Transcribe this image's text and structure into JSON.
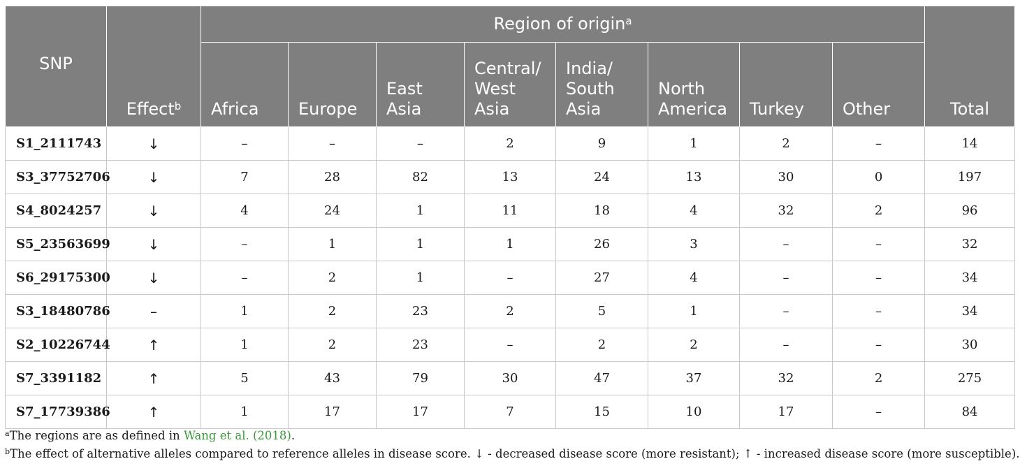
{
  "header": {
    "snp": "SNP",
    "effect": "Effect",
    "effect_sup": "b",
    "region_group": "Region of origin",
    "region_sup": "a",
    "regions": [
      "Africa",
      "Europe",
      "East Asia",
      "Central/ West Asia",
      "India/ South Asia",
      "North America",
      "Turkey",
      "Other"
    ],
    "total": "Total"
  },
  "rows": [
    {
      "snp": "S1_2111743",
      "effect": "↓",
      "values": [
        "–",
        "–",
        "–",
        "2",
        "9",
        "1",
        "2",
        "–"
      ],
      "total": "14"
    },
    {
      "snp": "S3_37752706",
      "effect": "↓",
      "values": [
        "7",
        "28",
        "82",
        "13",
        "24",
        "13",
        "30",
        "0"
      ],
      "total": "197"
    },
    {
      "snp": "S4_8024257",
      "effect": "↓",
      "values": [
        "4",
        "24",
        "1",
        "11",
        "18",
        "4",
        "32",
        "2"
      ],
      "total": "96"
    },
    {
      "snp": "S5_23563699",
      "effect": "↓",
      "values": [
        "–",
        "1",
        "1",
        "1",
        "26",
        "3",
        "–",
        "–"
      ],
      "total": "32"
    },
    {
      "snp": "S6_29175300",
      "effect": "↓",
      "values": [
        "–",
        "2",
        "1",
        "–",
        "27",
        "4",
        "–",
        "–"
      ],
      "total": "34"
    },
    {
      "snp": "S3_18480786",
      "effect": "–",
      "values": [
        "1",
        "2",
        "23",
        "2",
        "5",
        "1",
        "–",
        "–"
      ],
      "total": "34"
    },
    {
      "snp": "S2_10226744",
      "effect": "↑",
      "values": [
        "1",
        "2",
        "23",
        "–",
        "2",
        "2",
        "–",
        "–"
      ],
      "total": "30"
    },
    {
      "snp": "S7_3391182",
      "effect": "↑",
      "values": [
        "5",
        "43",
        "79",
        "30",
        "47",
        "37",
        "32",
        "2"
      ],
      "total": "275"
    },
    {
      "snp": "S7_17739386",
      "effect": "↑",
      "values": [
        "1",
        "17",
        "17",
        "7",
        "15",
        "10",
        "17",
        "–"
      ],
      "total": "84"
    }
  ],
  "footnotes": {
    "a_mark": "a",
    "a_text_before": "The regions are as defined in ",
    "a_link": "Wang et al. (2018)",
    "a_text_after": ".",
    "b_mark": "b",
    "b_text": "The effect of alternative alleles compared to reference alleles in disease score. ↓ - decreased disease score (more resistant); ↑ - increased disease score (more susceptible)."
  }
}
